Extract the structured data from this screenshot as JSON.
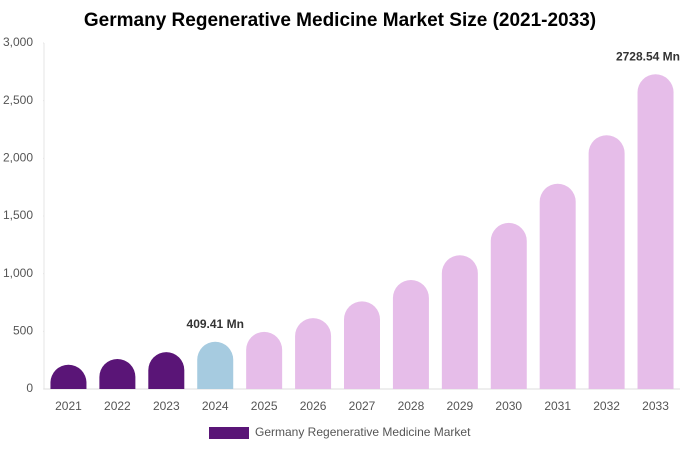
{
  "chart_data": {
    "type": "bar",
    "title": "Germany Regenerative Medicine Market Size (2021-2033)",
    "categories": [
      "2021",
      "2022",
      "2023",
      "2024",
      "2025",
      "2026",
      "2027",
      "2028",
      "2029",
      "2030",
      "2031",
      "2032",
      "2033"
    ],
    "series": [
      {
        "name": "Germany Regenerative Medicine Market",
        "color": "#5a1577",
        "colors": [
          "#5a1577",
          "#5a1577",
          "#5a1577",
          "#a6cbe0",
          "#e6bde9",
          "#e6bde9",
          "#e6bde9",
          "#e6bde9",
          "#e6bde9",
          "#e6bde9",
          "#e6bde9",
          "#e6bde9",
          "#e6bde9"
        ],
        "values": [
          210,
          260,
          320,
          409.41,
          495,
          615,
          760,
          945,
          1160,
          1440,
          1780,
          2200,
          2728.54
        ],
        "value_labels": [
          null,
          null,
          null,
          "409.41 Mn",
          null,
          null,
          null,
          null,
          null,
          null,
          null,
          null,
          "2728.54 Mn"
        ]
      }
    ],
    "ylim": [
      0,
      3000
    ],
    "yticks": [
      0,
      500,
      {
        "value": 1000,
        "label": "1,000"
      },
      {
        "value": 1500,
        "label": "1,500"
      },
      {
        "value": 2000,
        "label": "2,000"
      },
      {
        "value": 2500,
        "label": "2,500"
      },
      {
        "value": 3000,
        "label": "3,000"
      }
    ],
    "grid": false
  }
}
